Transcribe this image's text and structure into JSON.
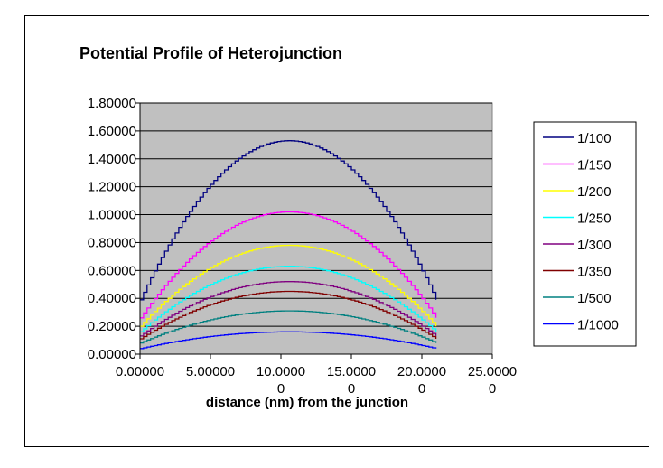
{
  "chart_data": {
    "type": "line",
    "title": "Potential Profile of Heterojunction",
    "xlabel": "distance (nm) from the junction",
    "ylabel": "",
    "xlim": [
      0,
      25
    ],
    "ylim": [
      0,
      1.8
    ],
    "y_ticks": [
      "0.00000",
      "0.20000",
      "0.40000",
      "0.60000",
      "0.80000",
      "1.00000",
      "1.20000",
      "1.40000",
      "1.60000",
      "1.80000"
    ],
    "x_ticks": [
      {
        "value": 0,
        "line1": "0.00000",
        "line2": ""
      },
      {
        "value": 5,
        "line1": "5.00000",
        "line2": ""
      },
      {
        "value": 10,
        "line1": "10.0000",
        "line2": "0"
      },
      {
        "value": 15,
        "line1": "15.0000",
        "line2": "0"
      },
      {
        "value": 20,
        "line1": "20.0000",
        "line2": "0"
      },
      {
        "value": 25,
        "line1": "25.0000",
        "line2": "0"
      }
    ],
    "grid": "horizontal",
    "plot_background": "#c0c0c0",
    "legend_position": "right",
    "x_range": [
      0,
      21
    ],
    "peak_x": 10.5,
    "series": [
      {
        "name": "1/100",
        "color": "#000080",
        "start": 0.39,
        "peak": 1.53,
        "end": 0.39
      },
      {
        "name": "1/150",
        "color": "#ff00ff",
        "start": 0.26,
        "peak": 1.02,
        "end": 0.26
      },
      {
        "name": "1/200",
        "color": "#ffff00",
        "start": 0.2,
        "peak": 0.78,
        "end": 0.2
      },
      {
        "name": "1/250",
        "color": "#00ffff",
        "start": 0.16,
        "peak": 0.63,
        "end": 0.16
      },
      {
        "name": "1/300",
        "color": "#800080",
        "start": 0.13,
        "peak": 0.52,
        "end": 0.13
      },
      {
        "name": "1/350",
        "color": "#800000",
        "start": 0.11,
        "peak": 0.45,
        "end": 0.11
      },
      {
        "name": "1/500",
        "color": "#008080",
        "start": 0.08,
        "peak": 0.31,
        "end": 0.08
      },
      {
        "name": "1/1000",
        "color": "#0000ff",
        "start": 0.04,
        "peak": 0.16,
        "end": 0.04
      }
    ]
  }
}
